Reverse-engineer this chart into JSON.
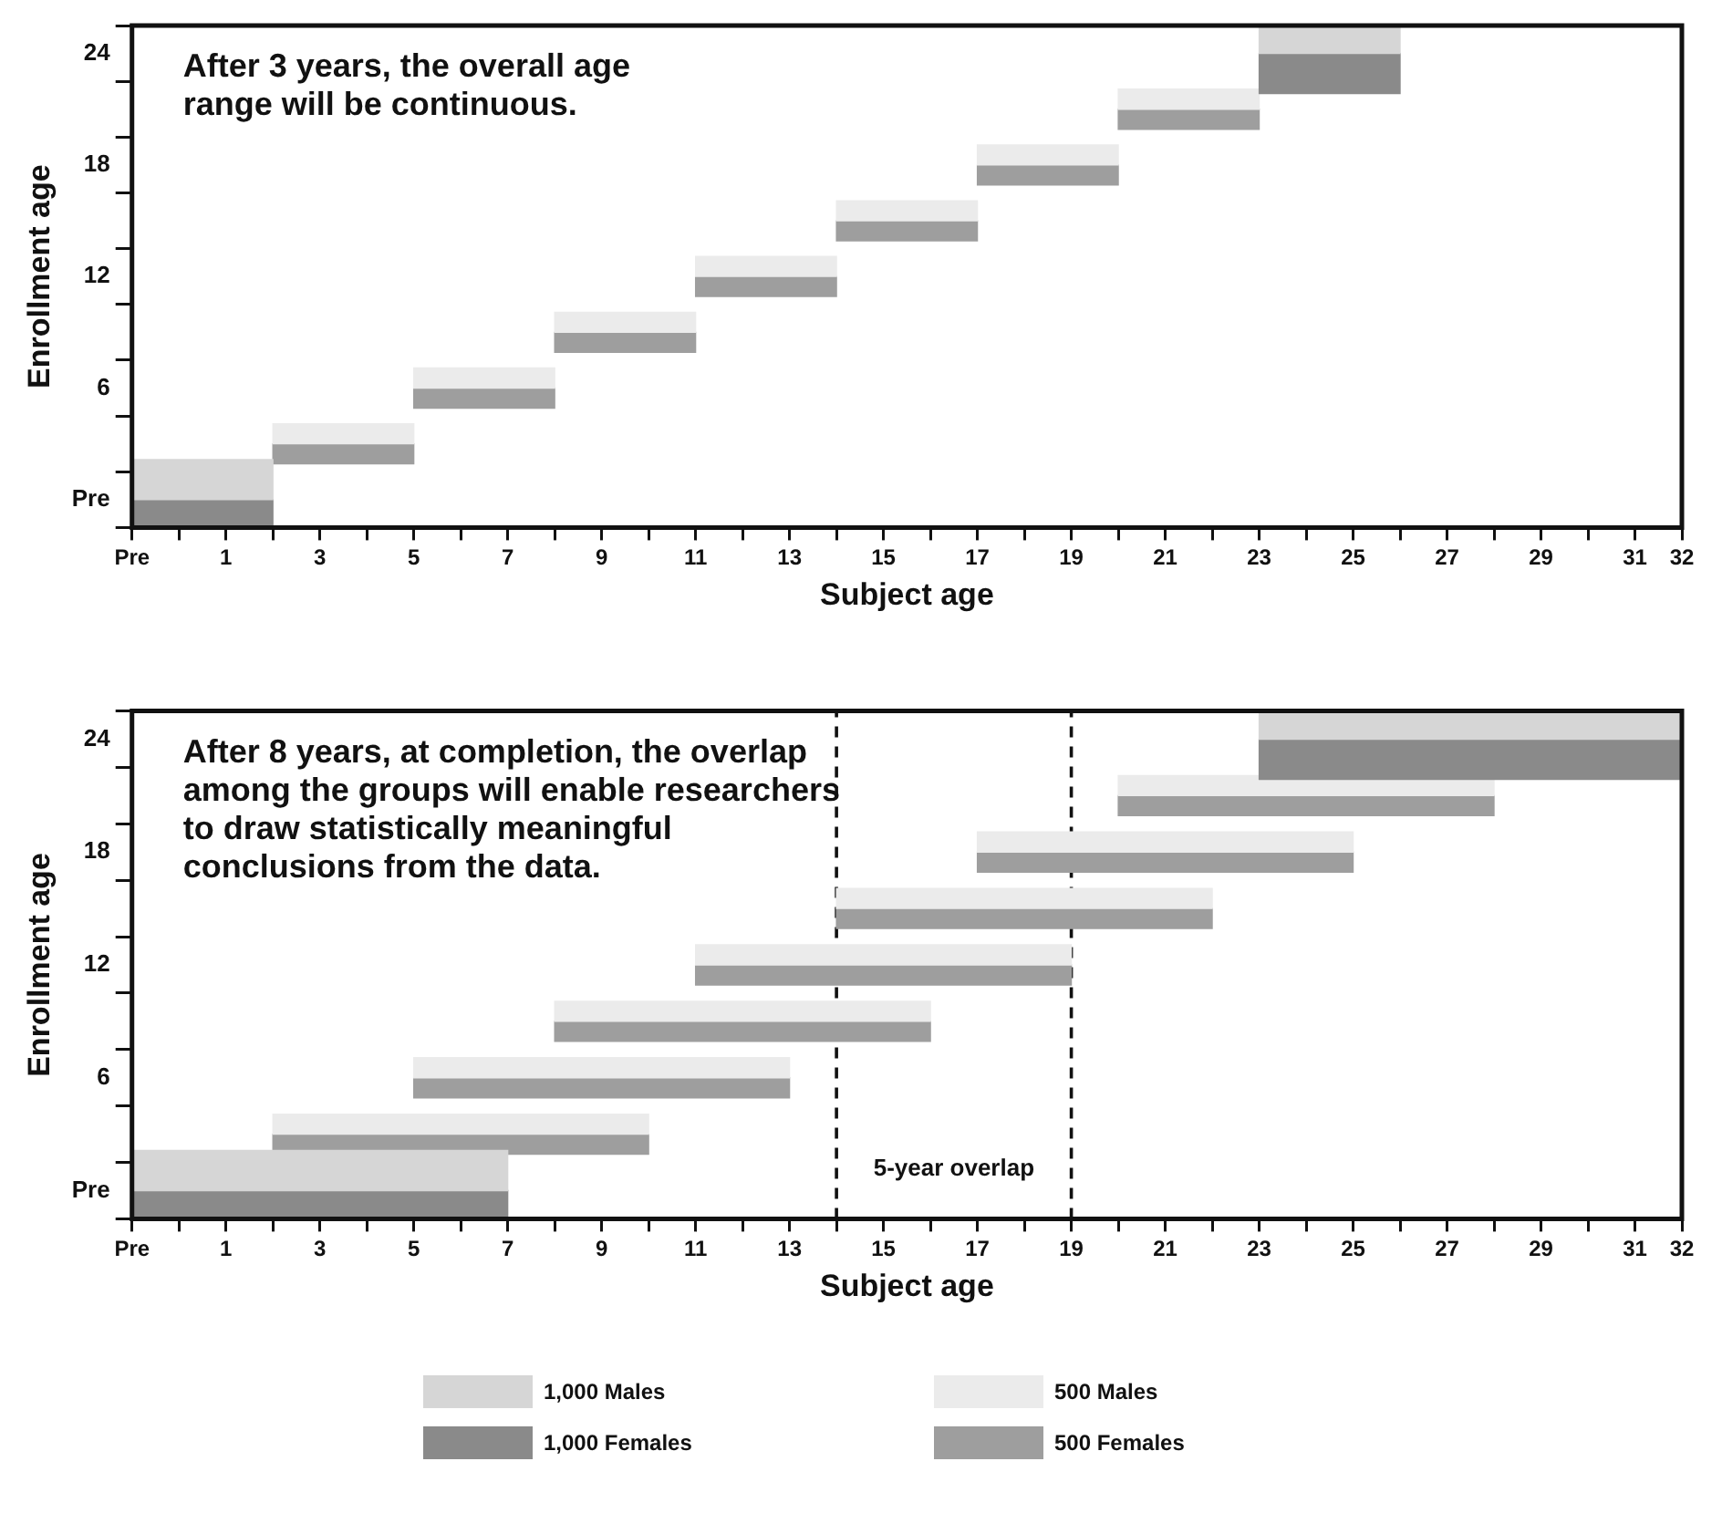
{
  "chart_data": [
    {
      "type": "bar",
      "orientation": "horizontal",
      "xlabel": "Subject age",
      "ylabel": "Enrollment age",
      "categories": [
        "24",
        null,
        "18",
        null,
        "12",
        null,
        "6",
        null,
        "Pre"
      ],
      "series": [
        {
          "color": "#d6d6d6",
          "base": [
            23,
            null,
            null,
            null,
            null,
            null,
            null,
            null,
            -1
          ],
          "values": [
            3,
            null,
            null,
            null,
            null,
            null,
            null,
            null,
            3
          ]
        },
        {
          "color": "#8a8a8a",
          "base": [
            23,
            null,
            null,
            null,
            null,
            null,
            null,
            null,
            -1
          ],
          "values": [
            3,
            null,
            null,
            null,
            null,
            null,
            null,
            null,
            3
          ]
        },
        {
          "color": "#ebebeb",
          "base": [
            null,
            20,
            17,
            14,
            11,
            8,
            5,
            2,
            null
          ],
          "values": [
            null,
            3,
            3,
            3,
            3,
            3,
            3,
            3,
            null
          ]
        },
        {
          "color": "#9e9e9e",
          "base": [
            null,
            20,
            17,
            14,
            11,
            8,
            5,
            2,
            null
          ],
          "values": [
            null,
            3,
            3,
            3,
            3,
            3,
            3,
            3,
            null
          ]
        }
      ],
      "xlim": [
        -1,
        32
      ],
      "xticks": [
        {
          "value": -1,
          "label": "Pre"
        },
        {
          "value": 0,
          "label": null
        },
        1,
        {
          "value": 2,
          "label": null
        },
        3,
        {
          "value": 4,
          "label": null
        },
        5,
        {
          "value": 6,
          "label": null
        },
        7,
        {
          "value": 8,
          "label": null
        },
        9,
        {
          "value": 10,
          "label": null
        },
        11,
        {
          "value": 12,
          "label": null
        },
        13,
        {
          "value": 14,
          "label": null
        },
        15,
        {
          "value": 16,
          "label": null
        },
        17,
        {
          "value": 18,
          "label": null
        },
        19,
        {
          "value": 20,
          "label": null
        },
        21,
        {
          "value": 22,
          "label": null
        },
        23,
        {
          "value": 24,
          "label": null
        },
        25,
        {
          "value": 26,
          "label": null
        },
        27,
        {
          "value": 28,
          "label": null
        },
        29,
        {
          "value": 30,
          "label": null
        },
        31,
        32
      ],
      "annotations": [
        "After 3 years, the overall age\nrange will be continuous."
      ],
      "grid": false,
      "legend": false
    },
    {
      "type": "bar",
      "orientation": "horizontal",
      "xlabel": "Subject age",
      "ylabel": "Enrollment age",
      "categories": [
        "24",
        null,
        "18",
        null,
        "12",
        null,
        "6",
        null,
        "Pre"
      ],
      "series": [
        {
          "name": "1,000 Males",
          "color": "#d6d6d6",
          "base": [
            23,
            null,
            null,
            null,
            null,
            null,
            null,
            null,
            -1
          ],
          "values": [
            9,
            null,
            null,
            null,
            null,
            null,
            null,
            null,
            8
          ]
        },
        {
          "name": "1,000 Females",
          "color": "#8a8a8a",
          "base": [
            23,
            null,
            null,
            null,
            null,
            null,
            null,
            null,
            -1
          ],
          "values": [
            9,
            null,
            null,
            null,
            null,
            null,
            null,
            null,
            8
          ]
        },
        {
          "name": "500 Males",
          "color": "#ebebeb",
          "base": [
            null,
            20,
            17,
            14,
            11,
            8,
            5,
            2,
            null
          ],
          "values": [
            null,
            8,
            8,
            8,
            8,
            8,
            8,
            8,
            null
          ]
        },
        {
          "name": "500 Females",
          "color": "#9e9e9e",
          "base": [
            null,
            20,
            17,
            14,
            11,
            8,
            5,
            2,
            null
          ],
          "values": [
            null,
            8,
            8,
            8,
            8,
            8,
            8,
            8,
            null
          ]
        }
      ],
      "xlim": [
        -1,
        32
      ],
      "xticks": [
        {
          "value": -1,
          "label": "Pre"
        },
        {
          "value": 0,
          "label": null
        },
        1,
        {
          "value": 2,
          "label": null
        },
        3,
        {
          "value": 4,
          "label": null
        },
        5,
        {
          "value": 6,
          "label": null
        },
        7,
        {
          "value": 8,
          "label": null
        },
        9,
        {
          "value": 10,
          "label": null
        },
        11,
        {
          "value": 12,
          "label": null
        },
        13,
        {
          "value": 14,
          "label": null
        },
        15,
        {
          "value": 16,
          "label": null
        },
        17,
        {
          "value": 18,
          "label": null
        },
        19,
        {
          "value": 20,
          "label": null
        },
        21,
        {
          "value": 22,
          "label": null
        },
        23,
        {
          "value": 24,
          "label": null
        },
        25,
        {
          "value": 26,
          "label": null
        },
        27,
        {
          "value": 28,
          "label": null
        },
        29,
        {
          "value": 30,
          "label": null
        },
        31,
        32
      ],
      "ref_lines": [
        {
          "axis": "x",
          "value": 14,
          "line_style": "dashed"
        },
        {
          "axis": "x",
          "value": 19,
          "line_style": "dashed"
        }
      ],
      "annotations": [
        "After 8 years, at completion, the overlap\namong the groups will enable researchers\nto draw statistically meaningful\nconclusions from the data.",
        "5-year overlap"
      ],
      "grid": false,
      "legend": "bottom"
    }
  ]
}
